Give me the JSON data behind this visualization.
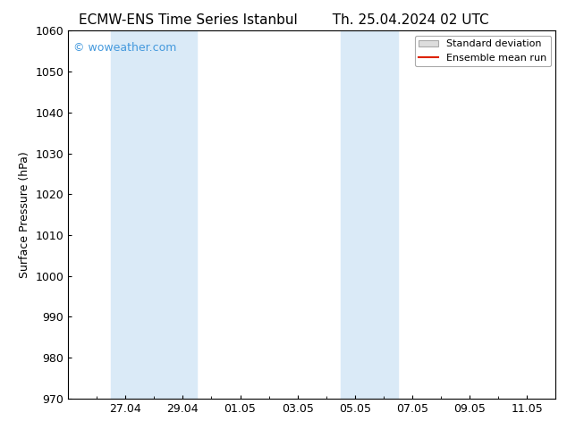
{
  "title_left": "ECMW-ENS Time Series Istanbul",
  "title_right": "Th. 25.04.2024 02 UTC",
  "ylabel": "Surface Pressure (hPa)",
  "ylim": [
    970,
    1060
  ],
  "yticks": [
    970,
    980,
    990,
    1000,
    1010,
    1020,
    1030,
    1040,
    1050,
    1060
  ],
  "xtick_labels": [
    "27.04",
    "29.04",
    "01.05",
    "03.05",
    "05.05",
    "07.05",
    "09.05",
    "11.05"
  ],
  "xtick_positions": [
    2,
    4,
    6,
    8,
    10,
    12,
    14,
    16
  ],
  "xlim": [
    0,
    17
  ],
  "background_color": "#ffffff",
  "plot_bg_color": "#ffffff",
  "shaded_bands": [
    {
      "x_start": 1.5,
      "x_end": 4.5,
      "color": "#daeaf7"
    },
    {
      "x_start": 9.5,
      "x_end": 11.5,
      "color": "#daeaf7"
    }
  ],
  "watermark_text": "© woweather.com",
  "watermark_color": "#4499dd",
  "legend_std_label": "Standard deviation",
  "legend_mean_label": "Ensemble mean run",
  "legend_std_facecolor": "#dddddd",
  "legend_std_edgecolor": "#aaaaaa",
  "legend_mean_color": "#dd2200",
  "title_fontsize": 11,
  "ylabel_fontsize": 9,
  "tick_fontsize": 9,
  "watermark_fontsize": 9,
  "legend_fontsize": 8
}
